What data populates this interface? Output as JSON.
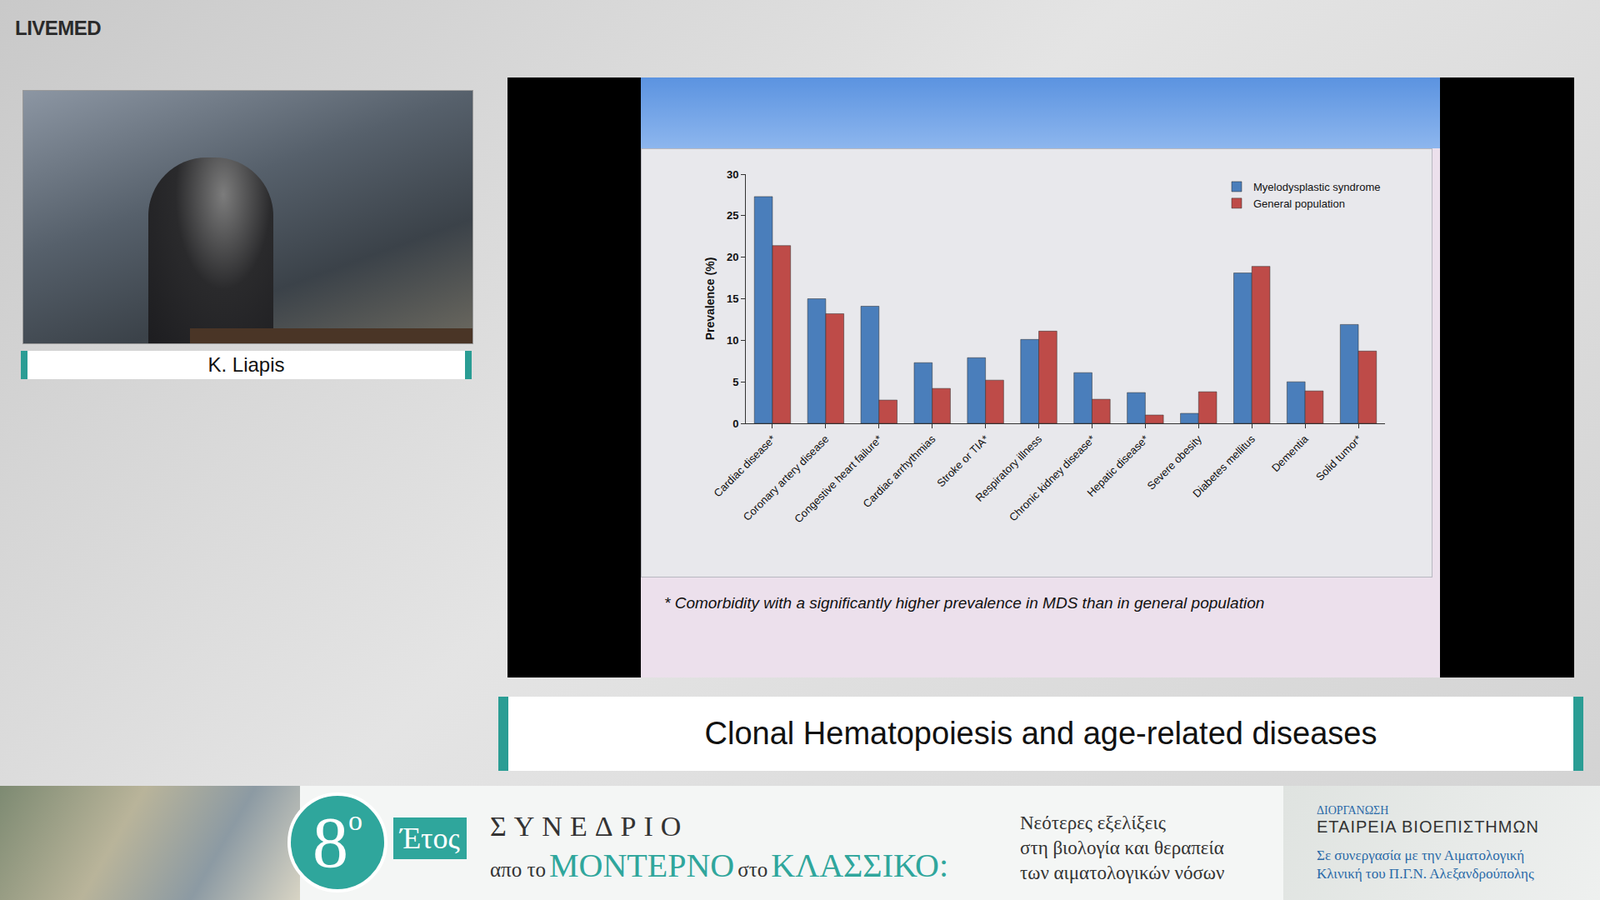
{
  "header": {
    "logo": "LIVEMED"
  },
  "speaker": {
    "name": "K. Liapis"
  },
  "chart_data": {
    "type": "bar",
    "categories": [
      "Cardiac disease*",
      "Coronary artery disease",
      "Congestive heart failure*",
      "Cardiac arrhythmias",
      "Stroke or TIA*",
      "Respiratory illness",
      "Chronic kidney disease*",
      "Hepatic disease*",
      "Severe obesity",
      "Diabetes mellitus",
      "Dementia",
      "Solid tumor*"
    ],
    "series": [
      {
        "name": "Myelodysplastic syndrome",
        "color": "#4a7ebb",
        "values": [
          27.3,
          15.0,
          14.1,
          7.3,
          7.9,
          10.1,
          6.1,
          3.7,
          1.2,
          18.1,
          5.0,
          11.9
        ]
      },
      {
        "name": "General population",
        "color": "#be4b48",
        "values": [
          21.4,
          13.2,
          2.8,
          4.2,
          5.2,
          11.1,
          2.9,
          1.0,
          3.8,
          18.9,
          3.9,
          8.7
        ]
      }
    ],
    "y_label": "Prevalence (%)",
    "ylim": [
      0,
      30
    ],
    "yticks": [
      0,
      5,
      10,
      15,
      20,
      25,
      30
    ],
    "grid": false,
    "legend": "top right",
    "annotations": [
      "* Comorbidity with a significantly higher prevalence in MDS than in general population"
    ]
  },
  "caption": "Clonal Hematopoiesis and age-related diseases",
  "banner": {
    "edition_number": "8",
    "edition_suffix": "ο",
    "edition_word": "Έτος",
    "event": "ΣΥΝΕΔΡΙΟ",
    "theme": [
      "απο το",
      "ΜΟΝΤΕΡΝΟ",
      "στο",
      "ΚΛΑΣΣΙΚΟ:"
    ],
    "subtitle_lines": [
      "Νεότερες εξελίξεις",
      "στη βιολογία και θεραπεία",
      "των αιματολογικών νόσων"
    ],
    "organizer_label": "ΔΙΟΡΓΑΝΩΣΗ",
    "organizer": "ΕΤΑΙΡΕΙΑ ΒΙΟΕΠΙΣΤΗΜΩΝ",
    "partner_lines": [
      "Σε συνεργασία με την Αιματολογική",
      "Κλινική του Π.Γ.Ν. Αλεξανδρούπολης"
    ]
  }
}
